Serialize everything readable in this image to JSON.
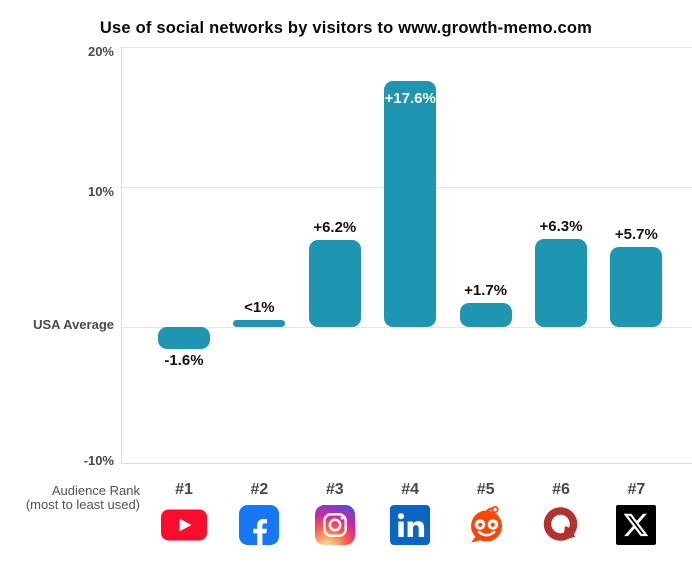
{
  "title": "Use of social networks by visitors to www.growth-memo.com",
  "y_axis": {
    "labels": [
      {
        "text": "20%",
        "value": 20
      },
      {
        "text": "10%",
        "value": 10
      },
      {
        "text": "USA Average",
        "value": 0
      },
      {
        "text": "-10%",
        "value": -10
      }
    ]
  },
  "x_axis_caption": {
    "line1": "Audience Rank",
    "line2": "(most to least used)"
  },
  "chart_data": {
    "type": "bar",
    "title": "Use of social networks by visitors to www.growth-memo.com",
    "categories": [
      "YouTube",
      "Facebook",
      "Instagram",
      "LinkedIn",
      "Reddit",
      "Quora",
      "X"
    ],
    "ranks": [
      "#1",
      "#2",
      "#3",
      "#4",
      "#5",
      "#6",
      "#7"
    ],
    "values": [
      -1.6,
      0.5,
      6.2,
      17.6,
      1.7,
      6.3,
      5.7
    ],
    "value_labels": [
      "-1.6%",
      "<1%",
      "+6.2%",
      "+17.6%",
      "+1.7%",
      "+6.3%",
      "+5.7%"
    ],
    "label_positions": [
      "below",
      "above",
      "above",
      "inside",
      "above",
      "above",
      "above"
    ],
    "icons": [
      "youtube-icon",
      "facebook-icon",
      "instagram-icon",
      "linkedin-icon",
      "reddit-icon",
      "quora-icon",
      "x-icon"
    ],
    "baseline_label": "USA Average",
    "ylim": [
      -10,
      20
    ],
    "grid": "horizontal",
    "legend": "none",
    "bar_color": "#1E96B2"
  },
  "colors": {
    "bar": "#1E96B2",
    "grid_line": "#E4E4E0",
    "axis_text": "#4A4A4A",
    "rank_text": "#4C4742",
    "caption_text": "#57524D",
    "title_text": "#0A0A0A",
    "value_label_text": "#121212",
    "value_label_inside": "#FFFFFF"
  },
  "brand_colors": {
    "youtube_red": "#FA0C2C",
    "facebook_blue": "#1877F2",
    "instagram_gradient": [
      "#FDF497",
      "#FD5949",
      "#D6249F",
      "#285AEB"
    ],
    "linkedin_blue": "#0A66C2",
    "reddit_orange": "#FF4500",
    "quora_red": "#B5312D",
    "x_black": "#000000"
  }
}
